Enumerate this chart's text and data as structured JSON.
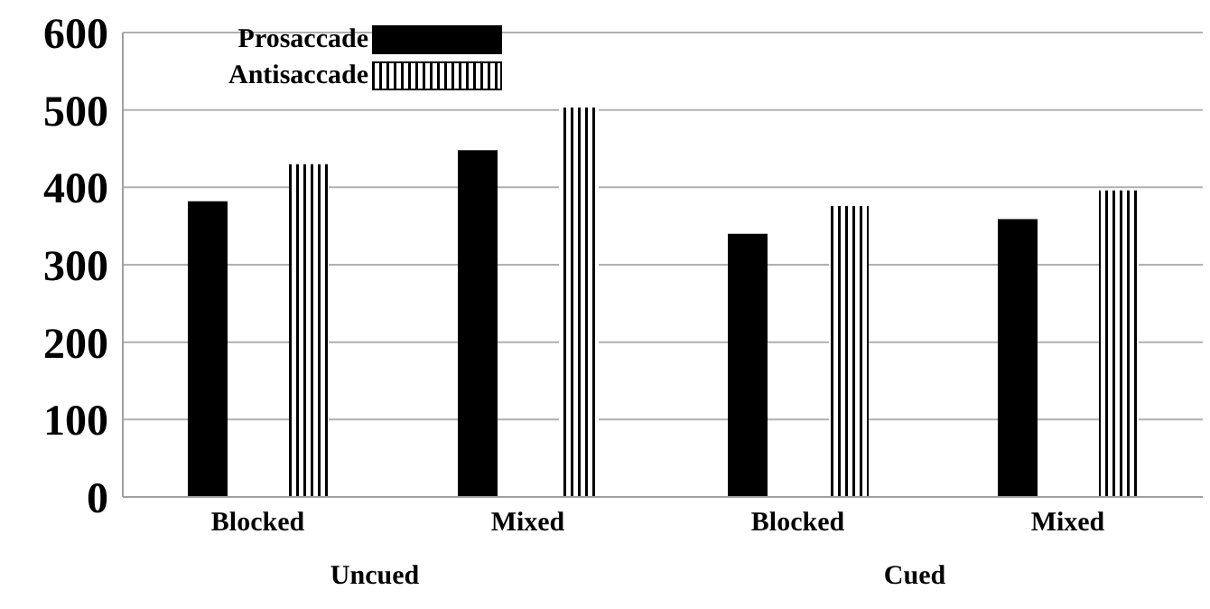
{
  "chart_data": {
    "type": "bar",
    "categories": [
      "Blocked",
      "Mixed",
      "Blocked",
      "Mixed"
    ],
    "series": [
      {
        "name": "Prosaccade",
        "color": "#000000",
        "values": [
          382,
          448,
          340,
          359
        ]
      },
      {
        "name": "Antisaccade",
        "color": "#000000",
        "values": [
          430,
          503,
          376,
          396
        ]
      }
    ],
    "ylim": [
      0,
      600
    ],
    "yticks": [
      0,
      100,
      200,
      300,
      400,
      500,
      600
    ],
    "grid": "y",
    "legend": "top left",
    "annotations": [
      "Uncued",
      "Cued"
    ]
  }
}
